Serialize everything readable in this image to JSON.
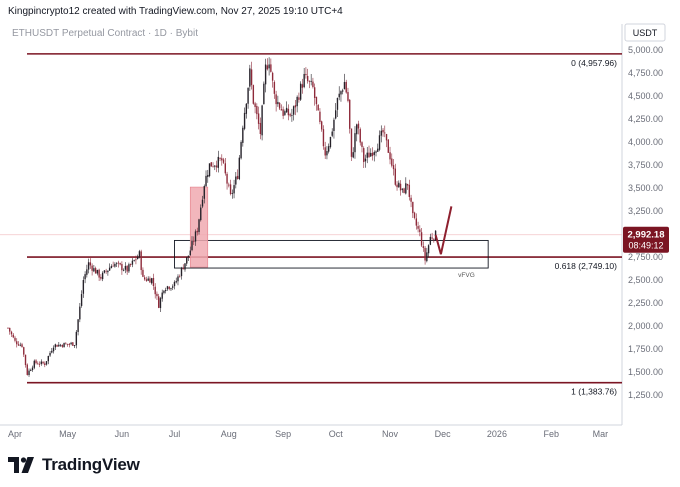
{
  "header": {
    "credit": "Kingpincrypto12 created with TradingView.com, Nov 27, 2025 19:10 UTC+4"
  },
  "footer": {
    "brand": "TradingView"
  },
  "colors": {
    "level_line": "#7b1523",
    "up_candle": "#26222a",
    "down_candle": "#8e2a3a",
    "fvg_fill": "#f0a9b0",
    "price_tag": "#7b1523",
    "projection": "#8e1f2e"
  },
  "chart_data": {
    "type": "candlestick",
    "title": "ETHUSDT Perpetual Contract · 1D · Bybit",
    "currency": "USDT",
    "y_axis": {
      "ticks": [
        "5,000.00",
        "4,750.00",
        "4,500.00",
        "4,250.00",
        "4,000.00",
        "3,750.00",
        "3,500.00",
        "3,250.00",
        "3,000.00",
        "2,750.00",
        "2,500.00",
        "2,250.00",
        "2,000.00",
        "1,750.00",
        "1,500.00",
        "1,250.00"
      ],
      "min": 1250,
      "max": 5000
    },
    "x_axis": {
      "ticks": [
        "Apr",
        "May",
        "Jun",
        "Jul",
        "Aug",
        "Sep",
        "Oct",
        "Nov",
        "Dec",
        "2026",
        "Feb",
        "Mar"
      ],
      "tick_dates": [
        "2025-04-01",
        "2025-05-01",
        "2025-06-01",
        "2025-07-01",
        "2025-08-01",
        "2025-09-01",
        "2025-10-01",
        "2025-11-01",
        "2025-12-01",
        "2026-01-01",
        "2026-02-01",
        "2026-03-01"
      ]
    },
    "fib_levels": [
      {
        "ratio": 0,
        "price": 4957.96,
        "label": "0 (4,957.96)"
      },
      {
        "ratio": 0.618,
        "price": 2749.1,
        "label": "0.618 (2,749.10)"
      },
      {
        "ratio": 1,
        "price": 1383.76,
        "label": "1 (1,383.76)"
      }
    ],
    "zones": [
      {
        "type": "fvg-box",
        "label": "vFVG",
        "from": "2025-07-01",
        "to": "2025-12-27",
        "low": 2630,
        "high": 2930
      },
      {
        "type": "highlight",
        "from": "2025-07-10",
        "to": "2025-07-20",
        "low": 2640,
        "high": 3510
      }
    ],
    "current_price": {
      "price": "2,992.18",
      "countdown": "08:49:12",
      "value": 2992.18
    },
    "projection": [
      {
        "date": "2025-11-27",
        "price": 2990
      },
      {
        "date": "2025-11-30",
        "price": 2780
      },
      {
        "date": "2025-12-06",
        "price": 3300
      }
    ],
    "price_path": [
      [
        "2025-03-28",
        1980
      ],
      [
        "2025-04-01",
        1830
      ],
      [
        "2025-04-05",
        1790
      ],
      [
        "2025-04-08",
        1480
      ],
      [
        "2025-04-12",
        1600
      ],
      [
        "2025-04-18",
        1590
      ],
      [
        "2025-04-23",
        1790
      ],
      [
        "2025-04-30",
        1800
      ],
      [
        "2025-05-05",
        1810
      ],
      [
        "2025-05-08",
        2200
      ],
      [
        "2025-05-10",
        2500
      ],
      [
        "2025-05-13",
        2680
      ],
      [
        "2025-05-20",
        2530
      ],
      [
        "2025-05-27",
        2680
      ],
      [
        "2025-06-04",
        2610
      ],
      [
        "2025-06-11",
        2780
      ],
      [
        "2025-06-13",
        2510
      ],
      [
        "2025-06-18",
        2510
      ],
      [
        "2025-06-22",
        2230
      ],
      [
        "2025-06-25",
        2420
      ],
      [
        "2025-07-01",
        2450
      ],
      [
        "2025-07-09",
        2770
      ],
      [
        "2025-07-14",
        3050
      ],
      [
        "2025-07-18",
        3550
      ],
      [
        "2025-07-21",
        3750
      ],
      [
        "2025-07-28",
        3800
      ],
      [
        "2025-08-02",
        3400
      ],
      [
        "2025-08-06",
        3650
      ],
      [
        "2025-08-09",
        4200
      ],
      [
        "2025-08-13",
        4750
      ],
      [
        "2025-08-15",
        4450
      ],
      [
        "2025-08-19",
        4100
      ],
      [
        "2025-08-22",
        4800
      ],
      [
        "2025-08-24",
        4900
      ],
      [
        "2025-08-27",
        4500
      ],
      [
        "2025-09-01",
        4320
      ],
      [
        "2025-09-06",
        4290
      ],
      [
        "2025-09-13",
        4700
      ],
      [
        "2025-09-18",
        4580
      ],
      [
        "2025-09-22",
        4180
      ],
      [
        "2025-09-25",
        3880
      ],
      [
        "2025-09-28",
        4040
      ],
      [
        "2025-10-02",
        4450
      ],
      [
        "2025-10-06",
        4650
      ],
      [
        "2025-10-08",
        4450
      ],
      [
        "2025-10-10",
        3800
      ],
      [
        "2025-10-13",
        4200
      ],
      [
        "2025-10-17",
        3800
      ],
      [
        "2025-10-24",
        3950
      ],
      [
        "2025-10-28",
        4100
      ],
      [
        "2025-11-01",
        3850
      ],
      [
        "2025-11-04",
        3580
      ],
      [
        "2025-11-08",
        3450
      ],
      [
        "2025-11-11",
        3550
      ],
      [
        "2025-11-14",
        3180
      ],
      [
        "2025-11-18",
        3000
      ],
      [
        "2025-11-21",
        2720
      ],
      [
        "2025-11-24",
        2960
      ],
      [
        "2025-11-27",
        2992.18
      ]
    ]
  }
}
